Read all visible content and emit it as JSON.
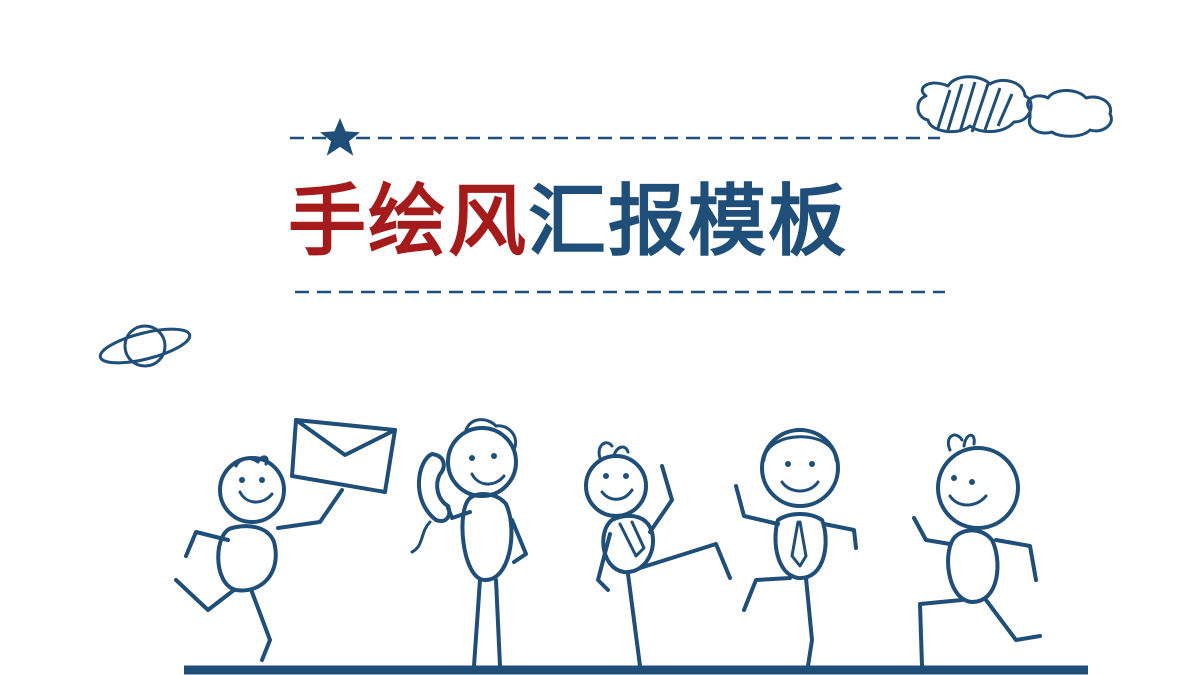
{
  "slide": {
    "title_red": "手绘风",
    "title_blue": "汇报模板"
  },
  "colors": {
    "accent_red": "#a51b1b",
    "ink_blue": "#1f4e79",
    "background": "#ffffff"
  },
  "decorations": [
    "star-icon",
    "cloud-icon",
    "planet-icon",
    "envelope-icon",
    "telephone-icon"
  ]
}
